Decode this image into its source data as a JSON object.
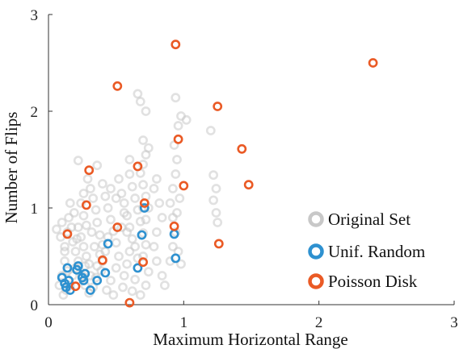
{
  "chart_data": {
    "type": "scatter",
    "title": "",
    "xlabel": "Maximum Horizontal Range",
    "ylabel": "Number of Flips",
    "xlim": [
      0,
      3
    ],
    "ylim": [
      0,
      3
    ],
    "xticks": [
      "0",
      "1",
      "2",
      "3"
    ],
    "yticks": [
      "0",
      "1",
      "2",
      "3"
    ],
    "grid": false,
    "legend_position": "bottom-right",
    "series": [
      {
        "name": "Original Set",
        "color": "#c8c8c8",
        "points": [
          [
            0.08,
            0.2
          ],
          [
            0.1,
            0.3
          ],
          [
            0.12,
            0.45
          ],
          [
            0.12,
            0.6
          ],
          [
            0.14,
            0.75
          ],
          [
            0.15,
            0.9
          ],
          [
            0.1,
            0.85
          ],
          [
            0.09,
            0.7
          ],
          [
            0.11,
            0.1
          ],
          [
            0.13,
            0.15
          ],
          [
            0.16,
            0.2
          ],
          [
            0.18,
            0.3
          ],
          [
            0.2,
            0.38
          ],
          [
            0.22,
            0.45
          ],
          [
            0.2,
            0.55
          ],
          [
            0.18,
            0.65
          ],
          [
            0.17,
            0.8
          ],
          [
            0.19,
            0.95
          ],
          [
            0.16,
            1.05
          ],
          [
            0.22,
            0.8
          ],
          [
            0.24,
            0.7
          ],
          [
            0.26,
            0.6
          ],
          [
            0.28,
            0.5
          ],
          [
            0.3,
            0.42
          ],
          [
            0.25,
            0.3
          ],
          [
            0.27,
            0.2
          ],
          [
            0.3,
            0.12
          ],
          [
            0.33,
            0.18
          ],
          [
            0.35,
            0.28
          ],
          [
            0.36,
            0.4
          ],
          [
            0.38,
            0.52
          ],
          [
            0.4,
            0.62
          ],
          [
            0.38,
            0.72
          ],
          [
            0.36,
            0.85
          ],
          [
            0.35,
            0.98
          ],
          [
            0.33,
            1.1
          ],
          [
            0.31,
            1.2
          ],
          [
            0.29,
            1.3
          ],
          [
            0.22,
            1.49
          ],
          [
            0.36,
            1.44
          ],
          [
            0.4,
            1.25
          ],
          [
            0.42,
            1.12
          ],
          [
            0.44,
            1.0
          ],
          [
            0.46,
            0.88
          ],
          [
            0.48,
            0.76
          ],
          [
            0.5,
            0.64
          ],
          [
            0.52,
            0.5
          ],
          [
            0.5,
            0.38
          ],
          [
            0.46,
            0.25
          ],
          [
            0.43,
            0.15
          ],
          [
            0.48,
            0.1
          ],
          [
            0.55,
            0.18
          ],
          [
            0.56,
            0.3
          ],
          [
            0.58,
            0.42
          ],
          [
            0.6,
            0.55
          ],
          [
            0.62,
            0.68
          ],
          [
            0.6,
            0.8
          ],
          [
            0.58,
            0.92
          ],
          [
            0.56,
            1.05
          ],
          [
            0.54,
            1.15
          ],
          [
            0.52,
            1.3
          ],
          [
            0.6,
            1.35
          ],
          [
            0.62,
            1.22
          ],
          [
            0.64,
            1.1
          ],
          [
            0.66,
            0.98
          ],
          [
            0.68,
            0.86
          ],
          [
            0.7,
            0.74
          ],
          [
            0.72,
            0.62
          ],
          [
            0.7,
            0.5
          ],
          [
            0.66,
            0.38
          ],
          [
            0.64,
            0.26
          ],
          [
            0.62,
            0.14
          ],
          [
            0.68,
            0.1
          ],
          [
            0.72,
            0.2
          ],
          [
            0.74,
            0.34
          ],
          [
            0.72,
            0.88
          ],
          [
            0.74,
            1.0
          ],
          [
            0.72,
            1.12
          ],
          [
            0.7,
            1.24
          ],
          [
            0.68,
            1.36
          ],
          [
            0.7,
            1.45
          ],
          [
            0.72,
            1.55
          ],
          [
            0.74,
            1.62
          ],
          [
            0.7,
            1.7
          ],
          [
            0.68,
            2.1
          ],
          [
            0.66,
            2.18
          ],
          [
            0.72,
            2.0
          ],
          [
            0.6,
            1.5
          ],
          [
            0.9,
            0.45
          ],
          [
            0.92,
            0.6
          ],
          [
            0.94,
            0.75
          ],
          [
            0.92,
            0.9
          ],
          [
            0.9,
            1.05
          ],
          [
            0.92,
            1.2
          ],
          [
            0.94,
            1.35
          ],
          [
            0.95,
            1.5
          ],
          [
            0.93,
            1.65
          ],
          [
            0.96,
            1.85
          ],
          [
            0.98,
            1.95
          ],
          [
            0.94,
            2.14
          ],
          [
            0.95,
            0.95
          ],
          [
            0.97,
            1.1
          ],
          [
            0.96,
            0.55
          ],
          [
            0.98,
            0.42
          ],
          [
            1.02,
            1.91
          ],
          [
            1.2,
            1.8
          ],
          [
            1.22,
            1.34
          ],
          [
            1.24,
            1.2
          ],
          [
            1.22,
            1.08
          ],
          [
            1.24,
            0.95
          ],
          [
            1.25,
            0.85
          ],
          [
            0.82,
            1.05
          ],
          [
            0.84,
            0.9
          ],
          [
            0.8,
            0.75
          ],
          [
            0.78,
            0.6
          ],
          [
            0.8,
            0.45
          ],
          [
            0.84,
            0.3
          ],
          [
            0.86,
            0.2
          ],
          [
            0.78,
            1.2
          ],
          [
            0.8,
            1.3
          ],
          [
            0.28,
            0.82
          ],
          [
            0.26,
            0.92
          ],
          [
            0.24,
            1.05
          ],
          [
            0.26,
            1.15
          ],
          [
            0.44,
            0.7
          ],
          [
            0.42,
            0.55
          ],
          [
            0.4,
            0.45
          ],
          [
            0.54,
            0.8
          ],
          [
            0.56,
            0.95
          ],
          [
            0.58,
            0.75
          ],
          [
            0.64,
            0.6
          ],
          [
            0.66,
            0.48
          ],
          [
            0.7,
            1.0
          ],
          [
            0.5,
            1.1
          ],
          [
            0.46,
            1.2
          ],
          [
            0.34,
            0.6
          ],
          [
            0.32,
            0.75
          ],
          [
            0.14,
            0.35
          ],
          [
            0.12,
            0.55
          ],
          [
            0.06,
            0.78
          ],
          [
            0.21,
            0.68
          ],
          [
            0.27,
            0.4
          ],
          [
            0.31,
            0.3
          ],
          [
            0.39,
            0.35
          ]
        ]
      },
      {
        "name": "Unif. Random",
        "color": "#2e91d0",
        "points": [
          [
            0.1,
            0.28
          ],
          [
            0.12,
            0.22
          ],
          [
            0.13,
            0.18
          ],
          [
            0.14,
            0.38
          ],
          [
            0.15,
            0.25
          ],
          [
            0.16,
            0.15
          ],
          [
            0.21,
            0.36
          ],
          [
            0.22,
            0.4
          ],
          [
            0.25,
            0.28
          ],
          [
            0.26,
            0.25
          ],
          [
            0.27,
            0.32
          ],
          [
            0.31,
            0.15
          ],
          [
            0.36,
            0.25
          ],
          [
            0.42,
            0.33
          ],
          [
            0.44,
            0.63
          ],
          [
            0.66,
            0.38
          ],
          [
            0.69,
            0.72
          ],
          [
            0.71,
            1.0
          ],
          [
            0.93,
            0.73
          ],
          [
            0.94,
            0.48
          ]
        ]
      },
      {
        "name": "Poisson Disk",
        "color": "#ea5a25",
        "points": [
          [
            0.14,
            0.73
          ],
          [
            0.2,
            0.19
          ],
          [
            0.28,
            1.03
          ],
          [
            0.3,
            1.39
          ],
          [
            0.4,
            0.46
          ],
          [
            0.51,
            2.26
          ],
          [
            0.51,
            0.8
          ],
          [
            0.6,
            0.02
          ],
          [
            0.66,
            1.43
          ],
          [
            0.7,
            0.44
          ],
          [
            0.71,
            1.05
          ],
          [
            0.93,
            0.81
          ],
          [
            0.94,
            2.69
          ],
          [
            0.96,
            1.71
          ],
          [
            1.0,
            1.23
          ],
          [
            1.25,
            2.05
          ],
          [
            1.26,
            0.63
          ],
          [
            1.43,
            1.61
          ],
          [
            1.48,
            1.24
          ],
          [
            2.4,
            2.5
          ]
        ]
      }
    ]
  }
}
